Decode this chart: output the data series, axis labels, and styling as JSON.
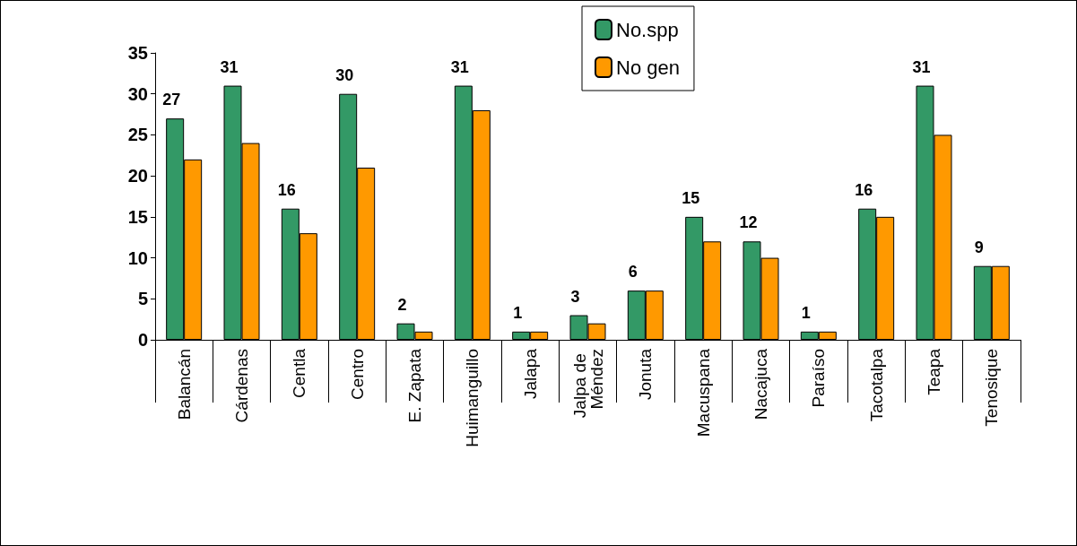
{
  "chart_data": {
    "type": "bar",
    "categories": [
      "Balancán",
      "Cárdenas",
      "Centla",
      "Centro",
      "E. Zapata",
      "Huimanguillo",
      "Jalapa",
      "Jalpa de Méndez",
      "Jonuta",
      "Macuspana",
      "Nacajuca",
      "Paraíso",
      "Tacotalpa",
      "Teapa",
      "Tenosique"
    ],
    "series": [
      {
        "name": "No.spp",
        "color": "#339966",
        "values": [
          27,
          31,
          16,
          30,
          2,
          31,
          1,
          3,
          6,
          15,
          12,
          1,
          16,
          31,
          9
        ],
        "value_labels": [
          "27",
          "31",
          "16",
          "30",
          "2",
          "31",
          "1",
          "3",
          "6",
          "15",
          "12",
          "1",
          "16",
          "31",
          "9"
        ]
      },
      {
        "name": "No gen",
        "color": "#ff9900",
        "values": [
          22,
          24,
          13,
          21,
          1,
          28,
          1,
          2,
          6,
          12,
          10,
          1,
          15,
          25,
          9
        ]
      }
    ],
    "ylim": [
      0,
      35
    ],
    "yticks": [
      0,
      5,
      10,
      15,
      20,
      25,
      30,
      35
    ],
    "grid": false,
    "legend": "top"
  }
}
